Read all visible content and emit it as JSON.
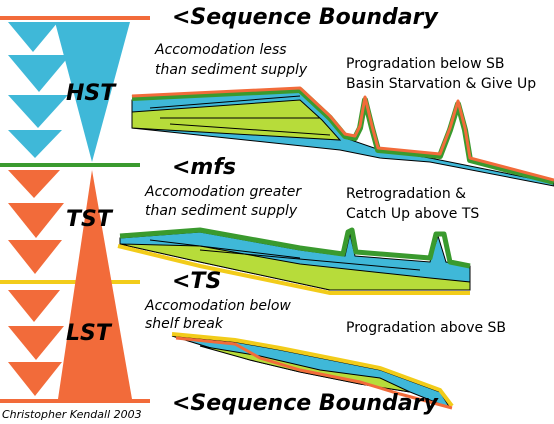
{
  "boundaries": [
    "<Sequence Boundary",
    "<mfs",
    "<TS",
    "<Sequence Boundary"
  ],
  "tracts": [
    "HST",
    "TST",
    "LST"
  ],
  "notes": [
    [
      "Accomodation less",
      "than sediment supply"
    ],
    [
      "Accomodation greater",
      "than sediment supply"
    ],
    [
      "Accomodation below",
      "shelf break"
    ]
  ],
  "descriptions": [
    [
      "Progradation below SB",
      "Basin Starvation & Give Up"
    ],
    [
      "Retrogradation &",
      "Catch Up above TS"
    ],
    [
      "Progradation above SB"
    ]
  ],
  "credit": "Christopher Kendall 2003"
}
